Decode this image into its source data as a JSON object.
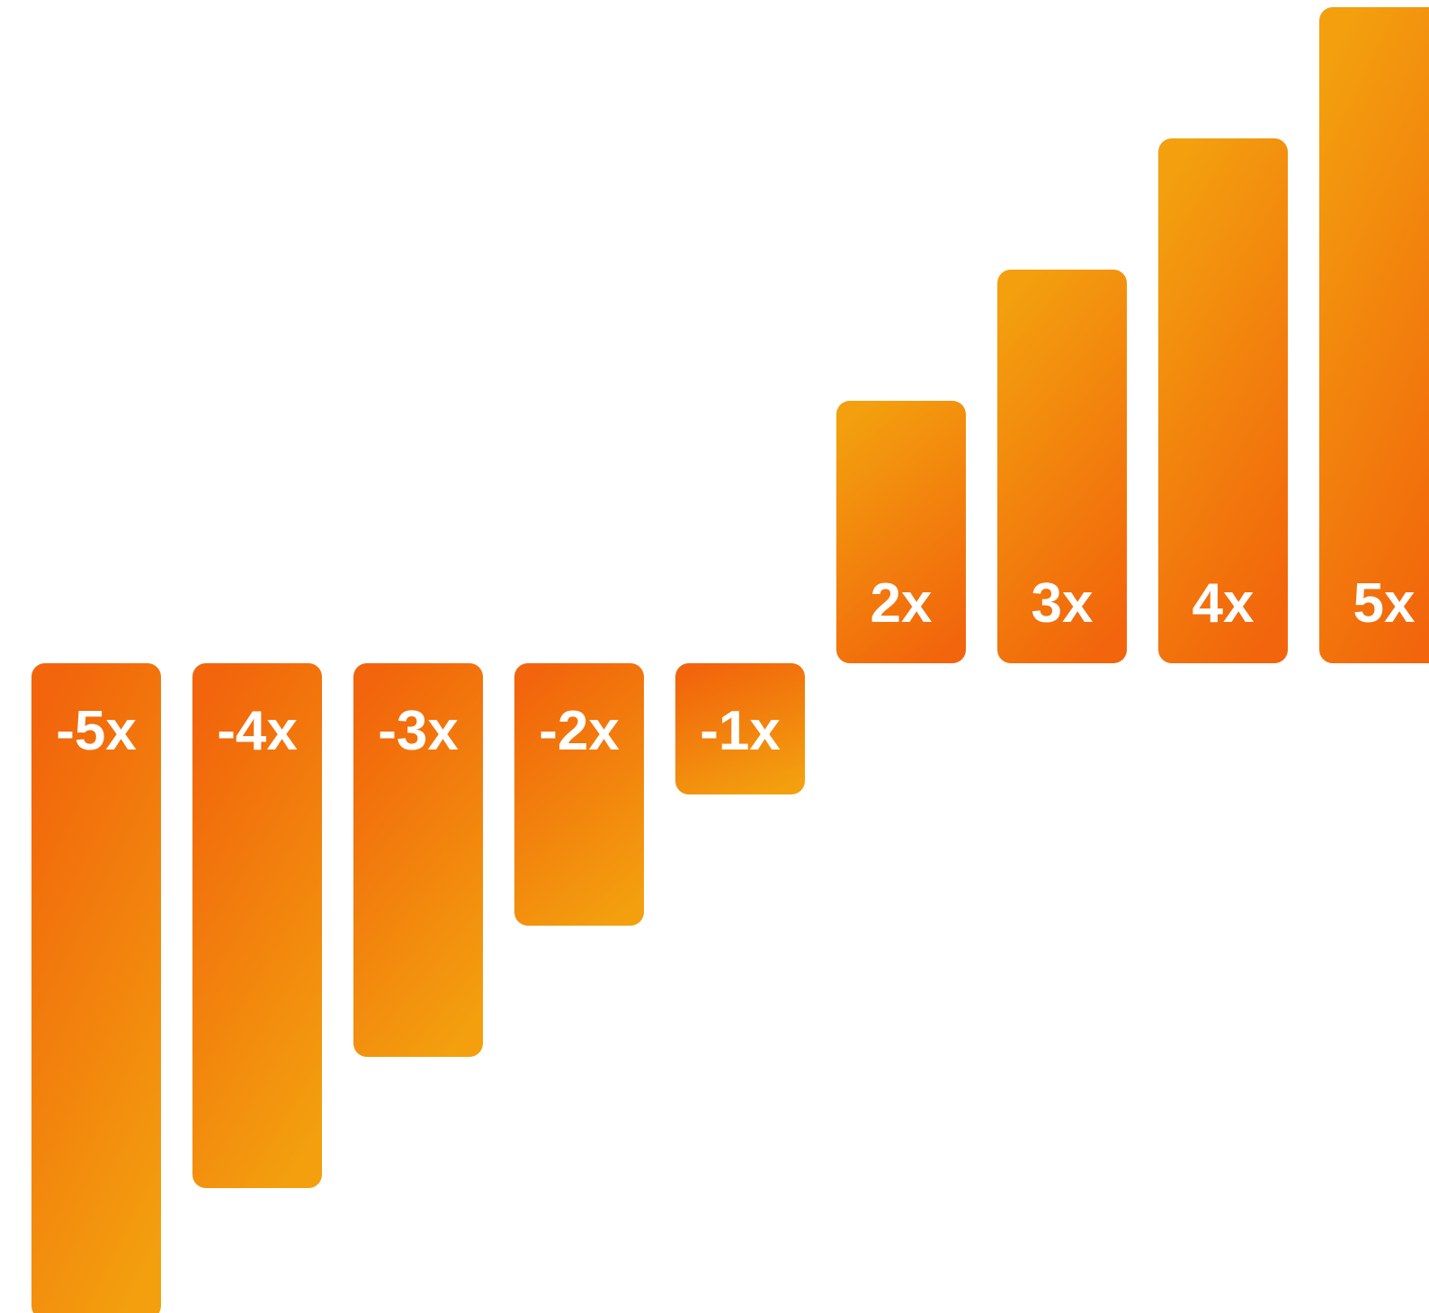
{
  "colors": {
    "bar_light": "#F39F0E",
    "bar_dark": "#F2650C",
    "label": "#FFFFFF",
    "background": "#FFFFFF"
  },
  "chart_data": {
    "type": "bar",
    "categories": [
      "-5x",
      "-4x",
      "-3x",
      "-2x",
      "-1x",
      "2x",
      "3x",
      "4x",
      "5x"
    ],
    "values": [
      -5,
      -4,
      -3,
      -2,
      -1,
      2,
      3,
      4,
      5
    ],
    "bar_labels": [
      "-5x",
      "-4x",
      "-3x",
      "-2x",
      "-1x",
      "2x",
      "3x",
      "4x",
      "5x"
    ],
    "title": "",
    "xlabel": "",
    "ylabel": "",
    "ylim": [
      -5,
      5
    ],
    "grid": false,
    "legend": "none"
  }
}
